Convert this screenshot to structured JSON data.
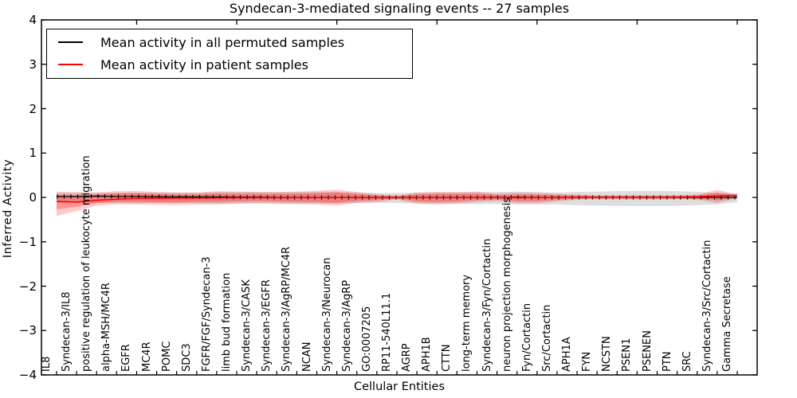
{
  "title": "Syndecan-3-mediated signaling events -- 27 samples",
  "legend": {
    "items": [
      {
        "label": "Mean activity in all permuted samples",
        "color": "#000000"
      },
      {
        "label": "Mean activity in patient samples",
        "color": "#ff0000"
      }
    ]
  },
  "chart_data": {
    "type": "line",
    "title": "Syndecan-3-mediated signaling events -- 27 samples",
    "xlabel": "Cellular Entities",
    "ylabel": "Inferred Activity",
    "ylim": [
      -4,
      4
    ],
    "yticks": [
      4,
      3,
      2,
      1,
      0,
      -1,
      -2,
      -3,
      -4
    ],
    "grid": false,
    "legend_position": "upper left",
    "categories": [
      "IL8",
      "Syndecan-3/IL8",
      "positive regulation of leukocyte migration",
      "alpha-MSH/MC4R",
      "EGFR",
      "MC4R",
      "POMC",
      "SDC3",
      "FGFR/FGF/Syndecan-3",
      "limb bud formation",
      "Syndecan-3/CASK",
      "Syndecan-3/EGFR",
      "Syndecan-3/AgRP/MC4R",
      "NCAN",
      "Syndecan-3/Neurocan",
      "Syndecan-3/AgRP",
      "GO:0007205",
      "RP11-540L11.1",
      "AGRP",
      "APH1B",
      "CTTN",
      "long-term memory",
      "Syndecan-3/Fyn/Cortactin",
      "neuron projection morphogenesis",
      "Fyn/Cortactin",
      "Src/Cortactin",
      "APH1A",
      "FYN",
      "NCSTN",
      "PSEN1",
      "PSENEN",
      "PTN",
      "SRC",
      "Syndecan-3/Src/Cortactin",
      "Gamma Secretase"
    ],
    "series": [
      {
        "name": "Mean activity in all permuted samples",
        "color": "#000000",
        "values": [
          0.02,
          0.02,
          0.03,
          0.02,
          0.02,
          0.015,
          0.01,
          0.01,
          0.01,
          0.005,
          0.005,
          0,
          0,
          0,
          0,
          0,
          0,
          0,
          0,
          0,
          0,
          0,
          0,
          0.005,
          0,
          0,
          0,
          0,
          0,
          0,
          0,
          0,
          0,
          0,
          0
        ]
      },
      {
        "name": "Mean activity in patient samples",
        "color": "#ff0000",
        "values": [
          -0.09,
          -0.105,
          -0.065,
          -0.04,
          -0.025,
          -0.02,
          -0.015,
          -0.012,
          -0.01,
          -0.008,
          -0.006,
          -0.008,
          -0.006,
          -0.005,
          -0.005,
          -0.004,
          -0.002,
          0,
          -0.002,
          -0.004,
          -0.002,
          0,
          0,
          -0.003,
          0,
          0.002,
          0.004,
          0.005,
          0.005,
          0.006,
          0.006,
          0.007,
          0.015,
          0.035,
          0.05
        ]
      }
    ],
    "bands": [
      {
        "name": "permuted-samples-range",
        "color": "rgba(0,0,0,0.13)",
        "upper": [
          0.1,
          0.1,
          0.1,
          0.11,
          0.11,
          0.11,
          0.11,
          0.11,
          0.12,
          0.12,
          0.12,
          0.12,
          0.12,
          0.12,
          0.12,
          0.11,
          0.1,
          0.1,
          0.11,
          0.11,
          0.11,
          0.12,
          0.12,
          0.13,
          0.12,
          0.11,
          0.125,
          0.13,
          0.14,
          0.145,
          0.145,
          0.14,
          0.125,
          0.1,
          0.08
        ],
        "lower": [
          -0.12,
          -0.12,
          -0.12,
          -0.13,
          -0.13,
          -0.13,
          -0.13,
          -0.13,
          -0.14,
          -0.14,
          -0.14,
          -0.14,
          -0.14,
          -0.14,
          -0.14,
          -0.13,
          -0.125,
          -0.125,
          -0.14,
          -0.14,
          -0.14,
          -0.15,
          -0.15,
          -0.16,
          -0.16,
          -0.16,
          -0.175,
          -0.185,
          -0.19,
          -0.195,
          -0.195,
          -0.19,
          -0.175,
          -0.15,
          -0.11
        ]
      },
      {
        "name": "patient-samples-range-outer",
        "color": "rgba(255,0,0,0.20)",
        "upper": [
          0.13,
          0.12,
          0.115,
          0.14,
          0.145,
          0.12,
          0.11,
          0.11,
          0.14,
          0.13,
          0.125,
          0.12,
          0.13,
          0.15,
          0.175,
          0.12,
          0.07,
          0.04,
          0.11,
          0.125,
          0.12,
          0.13,
          0.085,
          0.11,
          0.1,
          0.08,
          0.065,
          0.05,
          0.05,
          0.05,
          0.05,
          0.05,
          0.065,
          0.17,
          0.07
        ],
        "lower": [
          -0.42,
          -0.31,
          -0.19,
          -0.16,
          -0.16,
          -0.17,
          -0.175,
          -0.16,
          -0.16,
          -0.14,
          -0.125,
          -0.14,
          -0.15,
          -0.16,
          -0.185,
          -0.12,
          -0.1,
          -0.05,
          -0.14,
          -0.16,
          -0.14,
          -0.1,
          -0.08,
          -0.13,
          -0.13,
          -0.09,
          -0.05,
          -0.04,
          -0.04,
          -0.04,
          -0.04,
          -0.04,
          -0.05,
          -0.125,
          -0.02
        ]
      },
      {
        "name": "patient-samples-range-inner",
        "color": "rgba(255,0,0,0.28)",
        "upper": [
          0.06,
          0.05,
          0.06,
          0.09,
          0.095,
          0.08,
          0.07,
          0.07,
          0.09,
          0.085,
          0.08,
          0.08,
          0.085,
          0.1,
          0.115,
          0.08,
          0.045,
          0.025,
          0.07,
          0.08,
          0.08,
          0.085,
          0.055,
          0.07,
          0.065,
          0.05,
          0.04,
          0.03,
          0.03,
          0.03,
          0.03,
          0.03,
          0.04,
          0.11,
          0.045
        ],
        "lower": [
          -0.27,
          -0.21,
          -0.13,
          -0.1,
          -0.1,
          -0.11,
          -0.115,
          -0.1,
          -0.1,
          -0.09,
          -0.08,
          -0.09,
          -0.1,
          -0.105,
          -0.12,
          -0.08,
          -0.065,
          -0.03,
          -0.09,
          -0.105,
          -0.09,
          -0.065,
          -0.05,
          -0.085,
          -0.085,
          -0.06,
          -0.03,
          -0.025,
          -0.025,
          -0.025,
          -0.025,
          -0.025,
          -0.03,
          -0.065,
          -0.01
        ]
      }
    ]
  }
}
